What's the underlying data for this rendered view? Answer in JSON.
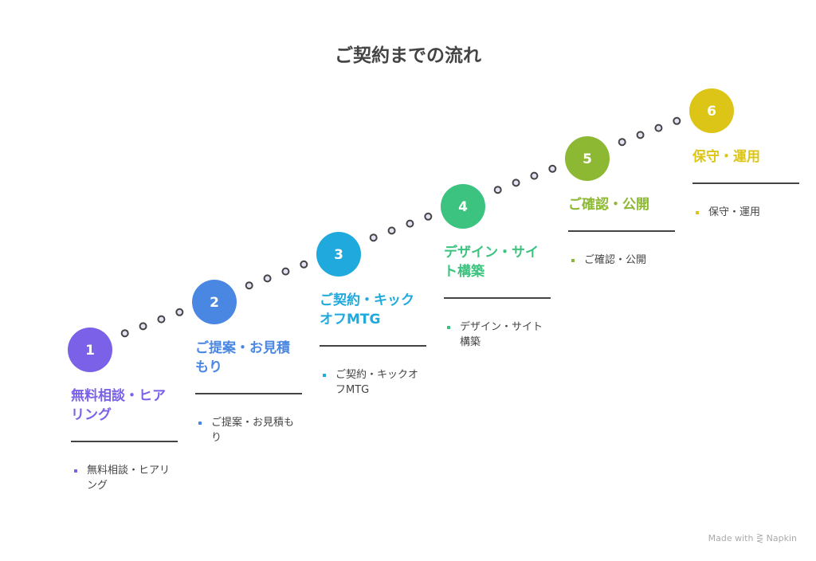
{
  "title": "ご契約までの流れ",
  "steps": [
    {
      "number": "1",
      "heading": "無料相談・ヒアリング",
      "item": "無料相談・ヒアリング",
      "color": "#7B61E8"
    },
    {
      "number": "2",
      "heading": "ご提案・お見積もり",
      "item": "ご提案・お見積もり",
      "color": "#4A87E3"
    },
    {
      "number": "3",
      "heading": "ご契約・キックオフMTG",
      "item": "ご契約・キックオフMTG",
      "color": "#1FA9DC"
    },
    {
      "number": "4",
      "heading": "デザイン・サイト構築",
      "item": "デザイン・サイト構築",
      "color": "#3CC37F"
    },
    {
      "number": "5",
      "heading": "ご確認・公開",
      "item": "ご確認・公開",
      "color": "#8DB834"
    },
    {
      "number": "6",
      "heading": "保守・運用",
      "item": "保守・運用",
      "color": "#DCC516"
    }
  ],
  "credit": "Made with ⋛ Napkin"
}
